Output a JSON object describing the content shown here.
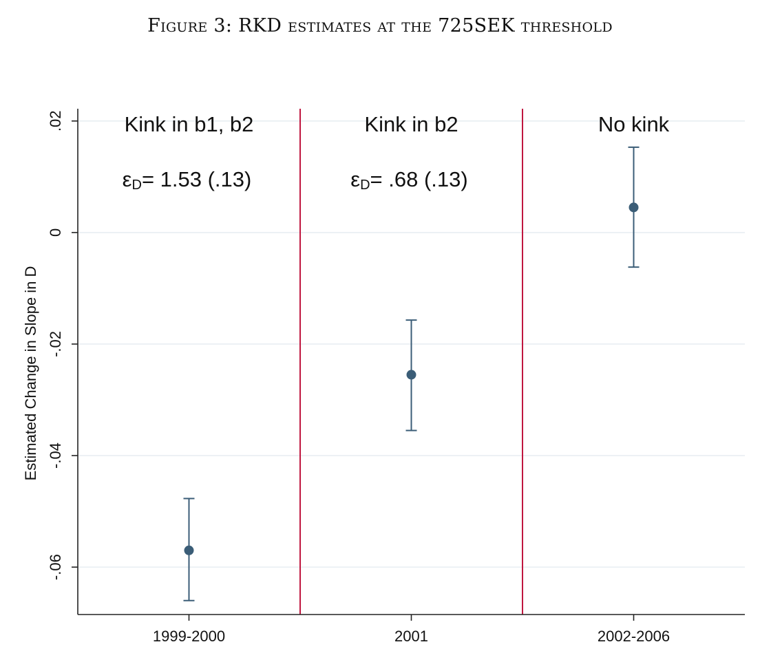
{
  "figure_title": "Figure 3: RKD estimates at the 725SEK threshold",
  "chart_data": {
    "type": "scatter",
    "title": "",
    "xlabel": "",
    "ylabel": "Estimated Change in Slope in D",
    "categories": [
      "1999-2000",
      "2001",
      "2002-2006"
    ],
    "series": [
      {
        "values": [
          -0.057,
          -0.0255,
          0.0045
        ],
        "ci_low": [
          -0.066,
          -0.0355,
          -0.0062
        ],
        "ci_high": [
          -0.0477,
          -0.0157,
          0.0153
        ]
      }
    ],
    "ylim": [
      -0.0685,
      0.0222
    ],
    "yticks": [
      0.02,
      0,
      -0.02,
      -0.04,
      -0.06
    ],
    "ytick_labels": [
      ".02",
      "0",
      "-.02",
      "-.04",
      "-.06"
    ],
    "grid": true,
    "panels": [
      {
        "label": "Kink in b1, b2",
        "annotation": {
          "symbol": "ε",
          "sub": "D",
          "text": "= 1.53 (.13)"
        }
      },
      {
        "label": "Kink in b2",
        "annotation": {
          "symbol": "ε",
          "sub": "D",
          "text": "= .68 (.13)"
        }
      },
      {
        "label": "No kink",
        "annotation": null
      }
    ],
    "colors": {
      "marker": "#3b5d77",
      "separator": "#c0163f",
      "grid": "#e8eef2",
      "axis": "#222222"
    }
  }
}
